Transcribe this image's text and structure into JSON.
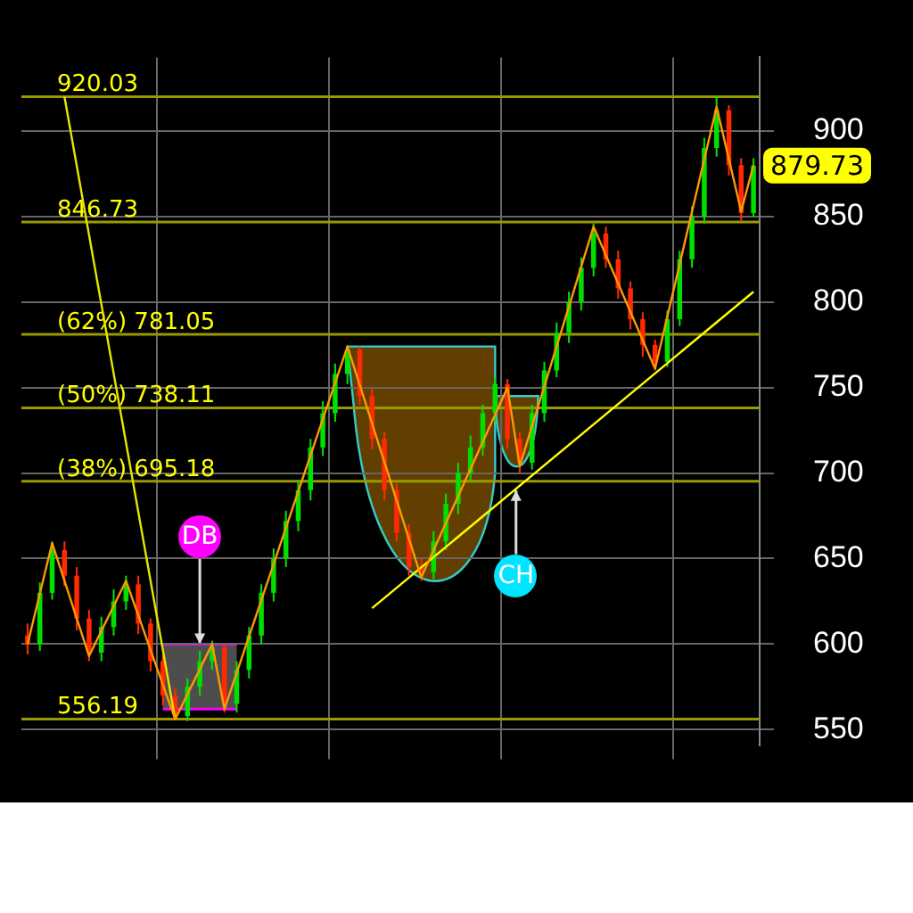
{
  "chart_data": {
    "type": "candlestick",
    "categories": [
      null,
      null,
      null,
      null,
      null,
      null,
      null,
      null,
      null,
      null,
      null,
      null,
      null,
      null,
      null,
      null,
      null,
      null,
      null,
      null,
      null,
      null,
      null,
      null,
      null,
      null,
      null,
      null,
      null,
      null,
      null,
      null,
      null,
      null,
      null,
      null,
      null,
      null,
      null,
      null,
      null,
      null,
      null,
      null,
      null,
      null,
      null,
      null,
      null,
      null,
      null,
      null,
      null,
      null,
      null,
      null,
      null,
      null,
      null,
      null
    ],
    "ohlc": [
      [
        605,
        612,
        594,
        600
      ],
      [
        600,
        636,
        596,
        630
      ],
      [
        630,
        660,
        626,
        655
      ],
      [
        655,
        660,
        634,
        640
      ],
      [
        640,
        645,
        608,
        615
      ],
      [
        615,
        620,
        590,
        595
      ],
      [
        595,
        616,
        590,
        610
      ],
      [
        610,
        632,
        605,
        625
      ],
      [
        625,
        640,
        620,
        635
      ],
      [
        635,
        640,
        606,
        612
      ],
      [
        612,
        615,
        584,
        590
      ],
      [
        590,
        594,
        564,
        570
      ],
      [
        570,
        574,
        556,
        558
      ],
      [
        558,
        580,
        555,
        575
      ],
      [
        575,
        596,
        570,
        590
      ],
      [
        590,
        602,
        585,
        598
      ],
      [
        598,
        600,
        560,
        565
      ],
      [
        565,
        590,
        560,
        585
      ],
      [
        585,
        610,
        580,
        605
      ],
      [
        605,
        635,
        600,
        630
      ],
      [
        630,
        656,
        625,
        650
      ],
      [
        650,
        678,
        645,
        672
      ],
      [
        672,
        696,
        666,
        690
      ],
      [
        690,
        720,
        684,
        715
      ],
      [
        715,
        742,
        710,
        735
      ],
      [
        735,
        764,
        730,
        758
      ],
      [
        758,
        774,
        752,
        772
      ],
      [
        772,
        774,
        740,
        745
      ],
      [
        745,
        750,
        714,
        720
      ],
      [
        720,
        724,
        684,
        690
      ],
      [
        690,
        694,
        660,
        665
      ],
      [
        665,
        670,
        640,
        645
      ],
      [
        645,
        650,
        637,
        642
      ],
      [
        642,
        666,
        638,
        660
      ],
      [
        660,
        688,
        655,
        682
      ],
      [
        682,
        706,
        676,
        700
      ],
      [
        700,
        722,
        695,
        715
      ],
      [
        715,
        740,
        710,
        735
      ],
      [
        735,
        756,
        730,
        752
      ],
      [
        752,
        755,
        714,
        720
      ],
      [
        720,
        724,
        700,
        706
      ],
      [
        706,
        740,
        702,
        735
      ],
      [
        735,
        765,
        730,
        760
      ],
      [
        760,
        788,
        756,
        782
      ],
      [
        782,
        806,
        776,
        800
      ],
      [
        800,
        826,
        795,
        820
      ],
      [
        820,
        846,
        815,
        840
      ],
      [
        840,
        844,
        820,
        825
      ],
      [
        825,
        830,
        802,
        808
      ],
      [
        808,
        812,
        784,
        790
      ],
      [
        790,
        794,
        768,
        775
      ],
      [
        775,
        778,
        760,
        765
      ],
      [
        765,
        795,
        762,
        790
      ],
      [
        790,
        830,
        786,
        825
      ],
      [
        825,
        856,
        820,
        850
      ],
      [
        850,
        896,
        846,
        890
      ],
      [
        890,
        920,
        885,
        912
      ],
      [
        912,
        915,
        874,
        880
      ],
      [
        880,
        884,
        847,
        852
      ],
      [
        852,
        884,
        850,
        879.73
      ]
    ],
    "colors": [
      "#ff2a00",
      "#00e000",
      "#00e000",
      "#ff2a00",
      "#ff2a00",
      "#ff2a00",
      "#00e000",
      "#00e000",
      "#00e000",
      "#ff2a00",
      "#ff2a00",
      "#ff2a00",
      "#ff2a00",
      "#00e000",
      "#00e000",
      "#00e000",
      "#ff2a00",
      "#00e000",
      "#00e000",
      "#00e000",
      "#00e000",
      "#00e000",
      "#00e000",
      "#00e000",
      "#00e000",
      "#00e000",
      "#00e000",
      "#ff2a00",
      "#ff2a00",
      "#ff2a00",
      "#ff2a00",
      "#ff2a00",
      "#ff2a00",
      "#00e000",
      "#00e000",
      "#00e000",
      "#00e000",
      "#00e000",
      "#00e000",
      "#ff2a00",
      "#ff2a00",
      "#00e000",
      "#00e000",
      "#00e000",
      "#00e000",
      "#00e000",
      "#00e000",
      "#ff2a00",
      "#ff2a00",
      "#ff2a00",
      "#ff2a00",
      "#ff2a00",
      "#00e000",
      "#00e000",
      "#00e000",
      "#00e000",
      "#00e000",
      "#ff2a00",
      "#ff2a00",
      "#00e000"
    ],
    "series": [
      {
        "type": "line",
        "color": "#ff9900",
        "values": [
          600,
          null,
          659,
          null,
          null,
          593,
          null,
          null,
          637,
          null,
          null,
          null,
          556,
          null,
          null,
          600,
          562,
          null,
          null,
          null,
          null,
          null,
          null,
          null,
          null,
          null,
          774,
          null,
          null,
          null,
          null,
          null,
          639,
          null,
          null,
          null,
          null,
          null,
          null,
          750,
          704,
          null,
          null,
          null,
          null,
          null,
          844,
          null,
          null,
          null,
          null,
          761,
          null,
          null,
          null,
          null,
          914,
          null,
          853,
          880
        ]
      },
      {
        "type": "line",
        "color": "#e6e600",
        "values": [
          null,
          null,
          null,
          920,
          null,
          null,
          null,
          null,
          null,
          null,
          null,
          null,
          556,
          null,
          null,
          null,
          null,
          null,
          null,
          null,
          null,
          null,
          null,
          null,
          null,
          null,
          null,
          null,
          null,
          null,
          null,
          null,
          null,
          null,
          null,
          null,
          null,
          null,
          null,
          null,
          null,
          null,
          null,
          null,
          null,
          null,
          null,
          null,
          null,
          null,
          null,
          null,
          null,
          null,
          null,
          null,
          null,
          null,
          null,
          null
        ]
      },
      {
        "type": "line",
        "color": "#ffff00",
        "values": [
          null,
          null,
          null,
          null,
          null,
          null,
          null,
          null,
          null,
          null,
          null,
          null,
          null,
          null,
          null,
          null,
          null,
          null,
          null,
          null,
          null,
          null,
          null,
          null,
          null,
          null,
          null,
          null,
          621,
          null,
          null,
          null,
          null,
          null,
          null,
          null,
          null,
          null,
          null,
          null,
          null,
          null,
          null,
          null,
          null,
          null,
          null,
          null,
          null,
          null,
          null,
          null,
          null,
          null,
          null,
          null,
          null,
          null,
          null,
          806
        ]
      }
    ],
    "ref_lines": [
      {
        "axis": "y",
        "value": 920.03,
        "label": "920.03",
        "color": "#9a9a00"
      },
      {
        "axis": "y",
        "value": 846.73,
        "label": "846.73",
        "color": "#9a9a00"
      },
      {
        "axis": "y",
        "value": 781.05,
        "label": "(62%) 781.05",
        "color": "#9a9a00"
      },
      {
        "axis": "y",
        "value": 738.11,
        "label": "(50%) 738.11",
        "color": "#9a9a00"
      },
      {
        "axis": "y",
        "value": 695.18,
        "label": "(38%) 695.18",
        "color": "#9a9a00"
      },
      {
        "axis": "y",
        "value": 556.19,
        "label": "556.19",
        "color": "#9a9a00"
      }
    ],
    "annotations": [
      "DB",
      "CH",
      "879.73"
    ],
    "ylim": [
      541,
      943
    ],
    "yticks": [
      550,
      600,
      650,
      700,
      750,
      800,
      850,
      900
    ],
    "grid": true,
    "legend": false,
    "tick_labels": "y"
  }
}
